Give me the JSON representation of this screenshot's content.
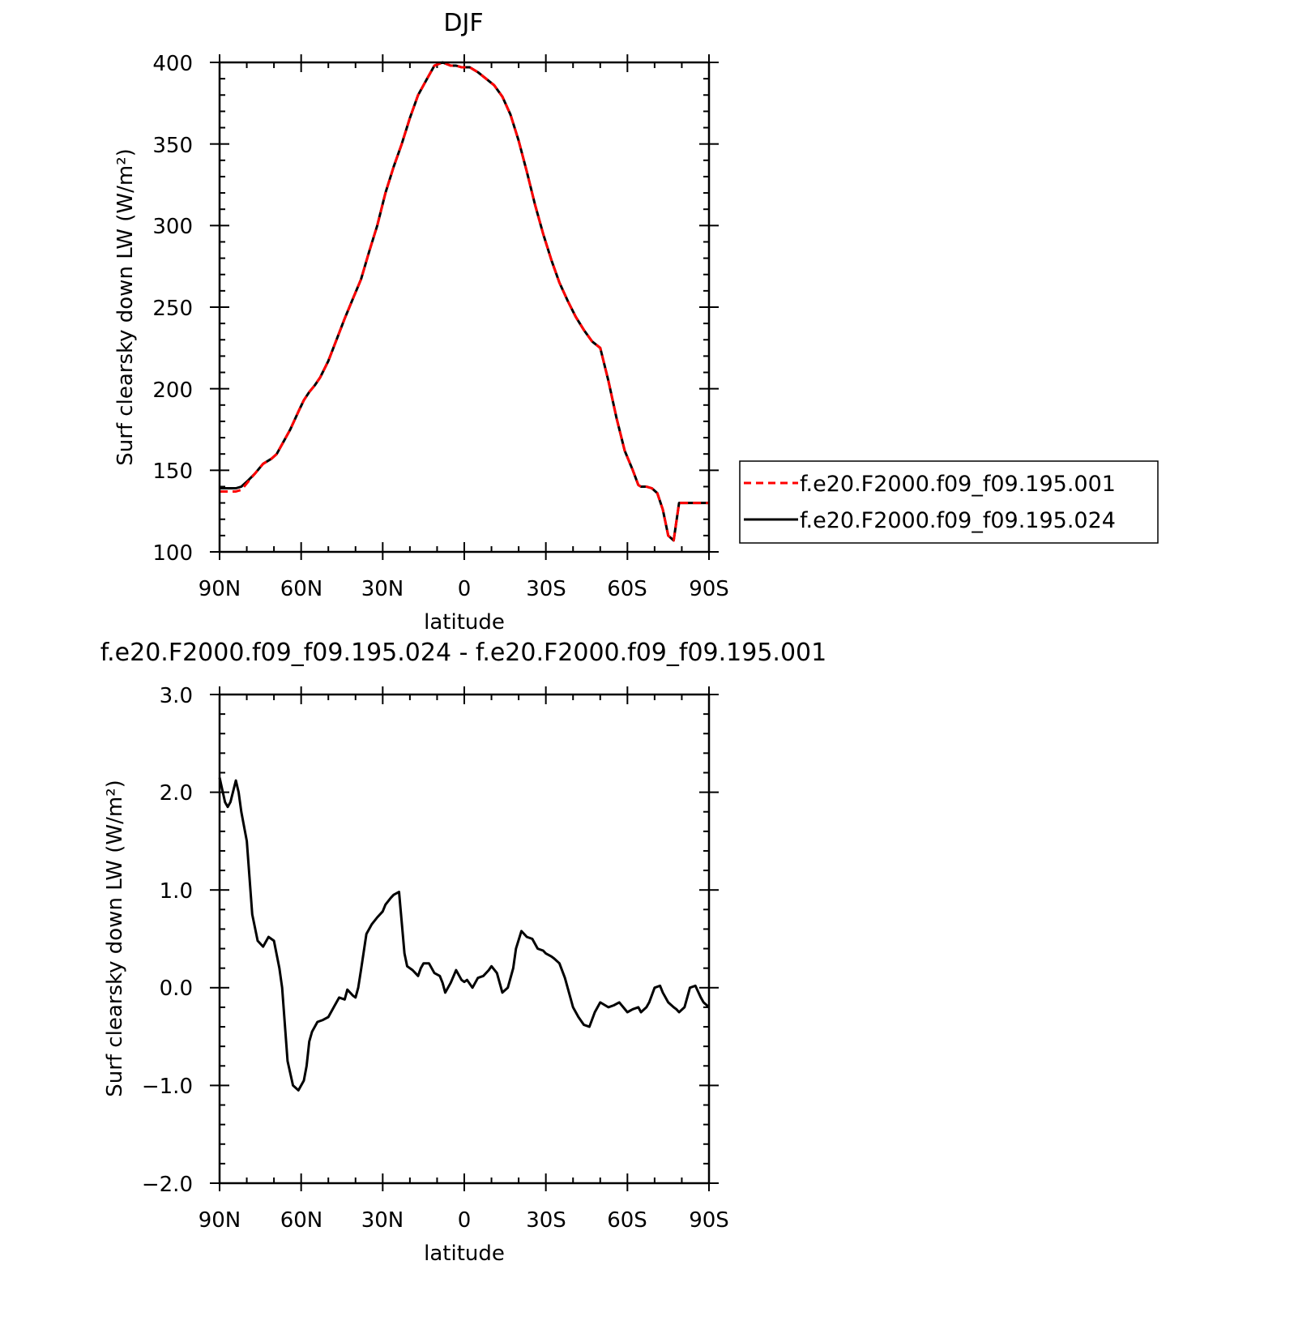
{
  "chart_data": [
    {
      "type": "line",
      "title": "DJF",
      "xlabel": "latitude",
      "ylabel": "Surf clearsky down LW (W/m²)",
      "ylim": [
        100,
        400
      ],
      "yticks": [
        "100",
        "150",
        "200",
        "250",
        "300",
        "350",
        "400"
      ],
      "xlim": [
        90,
        -90
      ],
      "xticks": [
        "90N",
        "60N",
        "30N",
        "0",
        "30S",
        "60S",
        "90S"
      ],
      "legend_position": "right",
      "series": [
        {
          "name": "f.e20.F2000.f09_f09.195.001",
          "color": "#ff0000",
          "dashed": true,
          "x": [
            90,
            87,
            84,
            82,
            80,
            77,
            74,
            71,
            69,
            67,
            64,
            61,
            59,
            57,
            55,
            53,
            50,
            47,
            44,
            41,
            38,
            35,
            32,
            29,
            26,
            23,
            20,
            17,
            14,
            11,
            8,
            5,
            3,
            1,
            -2,
            -5,
            -8,
            -11,
            -14,
            -17,
            -20,
            -23,
            -26,
            -29,
            -32,
            -35,
            -38,
            -41,
            -44,
            -47,
            -50,
            -53,
            -56,
            -59,
            -62,
            -64,
            -65,
            -67,
            -69,
            -71,
            -73,
            -75,
            -77,
            -79,
            -81,
            -83,
            -84,
            -86,
            -88,
            -90
          ],
          "y": [
            137,
            137,
            137,
            138,
            142,
            148,
            154,
            157,
            160,
            166,
            175,
            186,
            193,
            198,
            202,
            207,
            217,
            230,
            243,
            255,
            267,
            284,
            300,
            320,
            336,
            350,
            366,
            380,
            389,
            398,
            400,
            398,
            398,
            397,
            397,
            394,
            390,
            386,
            379,
            368,
            352,
            333,
            313,
            295,
            279,
            265,
            254,
            244,
            236,
            229,
            225,
            205,
            182,
            162,
            150,
            141,
            140,
            140,
            139,
            136,
            126,
            110,
            107,
            130,
            130,
            130,
            130,
            130,
            130,
            130
          ]
        },
        {
          "name": "f.e20.F2000.f09_f09.195.024",
          "color": "#000000",
          "dashed": false,
          "x": [
            90,
            87,
            84,
            82,
            80,
            77,
            74,
            71,
            69,
            67,
            64,
            61,
            59,
            57,
            55,
            53,
            50,
            47,
            44,
            41,
            38,
            35,
            32,
            29,
            26,
            23,
            20,
            17,
            14,
            11,
            8,
            5,
            3,
            1,
            -2,
            -5,
            -8,
            -11,
            -14,
            -17,
            -20,
            -23,
            -26,
            -29,
            -32,
            -35,
            -38,
            -41,
            -44,
            -47,
            -50,
            -53,
            -56,
            -59,
            -62,
            -64,
            -65,
            -67,
            -69,
            -71,
            -73,
            -75,
            -77,
            -79,
            -81,
            -83,
            -84,
            -86,
            -88,
            -90
          ],
          "y": [
            139,
            139,
            139,
            140,
            143,
            148,
            154,
            157,
            160,
            166,
            175,
            186,
            193,
            198,
            202,
            207,
            217,
            230,
            243,
            255,
            267,
            284,
            300,
            320,
            336,
            350,
            366,
            380,
            389,
            398,
            400,
            398,
            398,
            397,
            397,
            394,
            390,
            386,
            379,
            368,
            352,
            333,
            313,
            295,
            279,
            265,
            254,
            244,
            236,
            229,
            225,
            205,
            182,
            162,
            150,
            141,
            140,
            140,
            139,
            136,
            126,
            110,
            107,
            130,
            130,
            130,
            130,
            130,
            130,
            130
          ]
        }
      ]
    },
    {
      "type": "line",
      "title": "f.e20.F2000.f09_f09.195.024 - f.e20.F2000.f09_f09.195.001",
      "xlabel": "latitude",
      "ylabel": "Surf clearsky down LW (W/m²)",
      "ylim": [
        -2.0,
        3.0
      ],
      "yticks": [
        "−2.0",
        "−1.0",
        "0.0",
        "1.0",
        "2.0",
        "3.0"
      ],
      "xlim": [
        90,
        -90
      ],
      "xticks": [
        "90N",
        "60N",
        "30N",
        "0",
        "30S",
        "60S",
        "90S"
      ],
      "series": [
        {
          "color": "#000000",
          "x": [
            90,
            88,
            87,
            86,
            84,
            83,
            82,
            80,
            78,
            76,
            74,
            72,
            70,
            68,
            67,
            65,
            63,
            61,
            59,
            58,
            57,
            56,
            54,
            52,
            50,
            48,
            46,
            44,
            43,
            41,
            40,
            39,
            38,
            36,
            34,
            32,
            30,
            29,
            27,
            26,
            24,
            22,
            21,
            19,
            18,
            17,
            16,
            15,
            13,
            11,
            9,
            8,
            7,
            5,
            3,
            1,
            0,
            -1,
            -3,
            -5,
            -7,
            -9,
            -10,
            -12,
            -14,
            -16,
            -18,
            -19,
            -21,
            -23,
            -25,
            -27,
            -29,
            -30,
            -32,
            -33,
            -35,
            -37,
            -39,
            -40,
            -42,
            -44,
            -46,
            -48,
            -50,
            -53,
            -55,
            -57,
            -60,
            -62,
            -64,
            -65,
            -67,
            -68,
            -70,
            -72,
            -73,
            -75,
            -77,
            -78,
            -79,
            -81,
            -83,
            -85,
            -87,
            -88,
            -90
          ],
          "y": [
            2.15,
            1.9,
            1.85,
            1.9,
            2.12,
            2.0,
            1.8,
            1.5,
            0.75,
            0.48,
            0.42,
            0.52,
            0.48,
            0.2,
            0.0,
            -0.75,
            -1.0,
            -1.05,
            -0.95,
            -0.8,
            -0.55,
            -0.45,
            -0.35,
            -0.33,
            -0.3,
            -0.2,
            -0.1,
            -0.12,
            -0.02,
            -0.08,
            -0.1,
            0.0,
            0.18,
            0.55,
            0.65,
            0.72,
            0.78,
            0.85,
            0.92,
            0.95,
            0.98,
            0.35,
            0.22,
            0.18,
            0.15,
            0.12,
            0.2,
            0.25,
            0.25,
            0.15,
            0.12,
            0.05,
            -0.05,
            0.05,
            0.18,
            0.08,
            0.06,
            0.08,
            0.0,
            0.1,
            0.12,
            0.18,
            0.22,
            0.15,
            -0.05,
            0.0,
            0.2,
            0.4,
            0.58,
            0.52,
            0.5,
            0.4,
            0.38,
            0.35,
            0.32,
            0.3,
            0.25,
            0.1,
            -0.1,
            -0.2,
            -0.3,
            -0.38,
            -0.4,
            -0.25,
            -0.15,
            -0.2,
            -0.18,
            -0.15,
            -0.25,
            -0.22,
            -0.2,
            -0.25,
            -0.2,
            -0.15,
            0.0,
            0.02,
            -0.05,
            -0.15,
            -0.2,
            -0.22,
            -0.25,
            -0.2,
            0.0,
            0.02,
            -0.1,
            -0.15,
            -0.2
          ]
        }
      ]
    }
  ]
}
